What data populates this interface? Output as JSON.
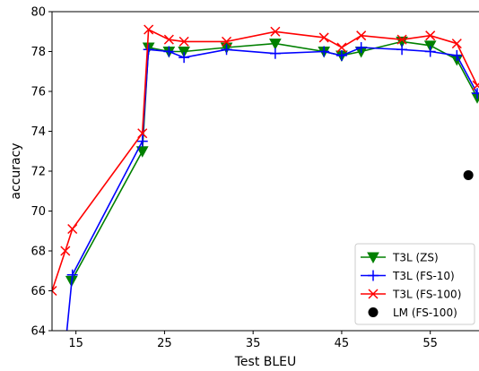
{
  "chart_data": {
    "type": "line",
    "title": "",
    "xlabel": "Test BLEU",
    "ylabel": "accuracy",
    "xlim": [
      12.3,
      60.5
    ],
    "ylim": [
      64,
      80
    ],
    "xticks": [
      15,
      25,
      35,
      45,
      55
    ],
    "yticks": [
      64,
      66,
      68,
      70,
      72,
      74,
      76,
      78,
      80
    ],
    "grid": false,
    "legend_position": "bottom-right",
    "series": [
      {
        "name": "T3L (ZS)",
        "color": "#008000",
        "marker": "triangle-down",
        "x": [
          14.5,
          22.5,
          23.2,
          25.5,
          27.2,
          32.0,
          37.5,
          43.0,
          45.0,
          47.2,
          51.8,
          55.0,
          58.0,
          60.3
        ],
        "y": [
          66.5,
          73.0,
          78.2,
          78.0,
          78.0,
          78.2,
          78.4,
          78.0,
          77.8,
          78.0,
          78.5,
          78.3,
          77.6,
          75.7
        ]
      },
      {
        "name": "T3L (FS-10)",
        "color": "#0000ff",
        "marker": "plus",
        "x": [
          13.8,
          14.6,
          22.5,
          23.2,
          25.5,
          27.2,
          32.0,
          37.5,
          43.0,
          45.0,
          47.2,
          51.8,
          55.0,
          58.0,
          60.3
        ],
        "y": [
          63.2,
          66.8,
          73.5,
          78.1,
          78.0,
          77.7,
          78.1,
          77.9,
          78.0,
          77.8,
          78.2,
          78.1,
          78.0,
          77.8,
          75.9
        ]
      },
      {
        "name": "T3L (FS-100)",
        "color": "#ff0000",
        "marker": "x",
        "x": [
          12.3,
          13.8,
          14.6,
          22.5,
          23.2,
          25.5,
          27.2,
          32.0,
          37.5,
          43.0,
          45.0,
          47.2,
          51.8,
          55.0,
          58.0,
          60.3
        ],
        "y": [
          66.0,
          68.0,
          69.1,
          73.9,
          79.1,
          78.6,
          78.5,
          78.5,
          79.0,
          78.7,
          78.2,
          78.8,
          78.6,
          78.8,
          78.4,
          76.3
        ]
      },
      {
        "name": "LM (FS-100)",
        "color": "#000000",
        "marker": "circle",
        "linestyle": "none",
        "x": [
          59.3
        ],
        "y": [
          71.8
        ]
      }
    ]
  }
}
